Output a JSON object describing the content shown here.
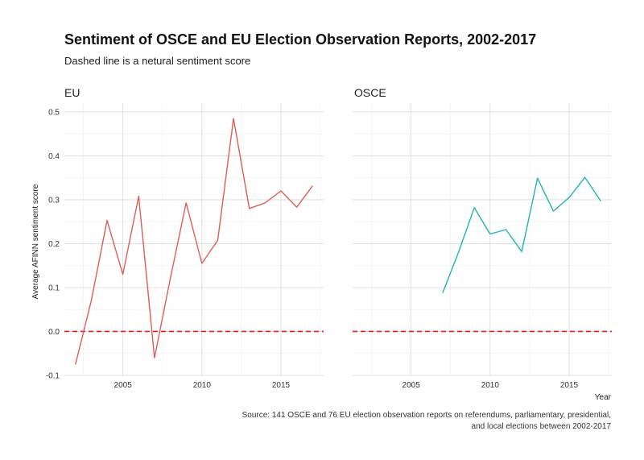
{
  "chart_data": {
    "type": "line",
    "title": "Sentiment of OSCE and EU Election Observation Reports, 2002-2017",
    "subtitle": "Dashed line is a netural sentiment score",
    "ylabel": "Average AFINN sentiment score",
    "xlabel": "Year",
    "xlim": [
      2001.3,
      2017.7
    ],
    "ylim": [
      -0.1,
      0.52
    ],
    "x_ticks": [
      2005,
      2010,
      2015
    ],
    "x_tick_labels": [
      "2005",
      "2010",
      "2015"
    ],
    "y_ticks": [
      -0.1,
      0.0,
      0.1,
      0.2,
      0.3,
      0.4,
      0.5
    ],
    "y_tick_labels": [
      "-0.1",
      "0.0",
      "0.1",
      "0.2",
      "0.3",
      "0.4",
      "0.5"
    ],
    "reference_line": {
      "y": 0.0,
      "style": "dashed",
      "color": "#e8191f"
    },
    "grid": true,
    "facets": [
      {
        "name": "EU",
        "color": "#e05d55",
        "x": [
          2002,
          2003,
          2004,
          2005,
          2006,
          2007,
          2008,
          2009,
          2010,
          2011,
          2012,
          2013,
          2014,
          2015,
          2016,
          2017
        ],
        "y": [
          -0.075,
          0.07,
          0.253,
          0.13,
          0.308,
          -0.06,
          0.12,
          0.293,
          0.155,
          0.208,
          0.485,
          0.28,
          0.293,
          0.32,
          0.283,
          0.332
        ]
      },
      {
        "name": "OSCE",
        "color": "#1fb3ba",
        "x": [
          2007,
          2008,
          2009,
          2010,
          2011,
          2012,
          2013,
          2014,
          2015,
          2016,
          2017
        ],
        "y": [
          0.088,
          0.18,
          0.282,
          0.222,
          0.232,
          0.182,
          0.349,
          0.274,
          0.305,
          0.351,
          0.297
        ]
      }
    ],
    "caption_lines": [
      "Source: 141 OSCE and 76 EU election observation reports on referendums, parliamentary, presidential,",
      "and local elections between 2002-2017"
    ]
  }
}
